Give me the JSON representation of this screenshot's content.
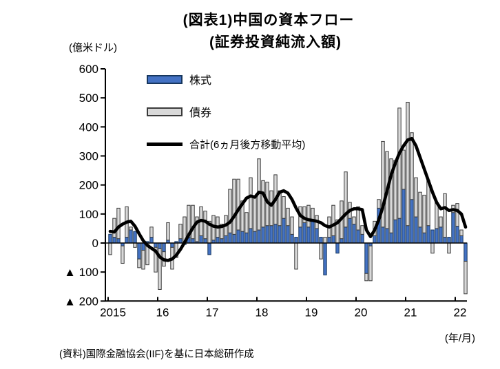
{
  "title": {
    "line1": "(図表1)中国の資本フロー",
    "line2": "(証券投資純流入額)"
  },
  "y_axis": {
    "unit_label": "(億米ドル)",
    "ticks": [
      {
        "value": 600,
        "label": "600"
      },
      {
        "value": 500,
        "label": "500"
      },
      {
        "value": 400,
        "label": "400"
      },
      {
        "value": 300,
        "label": "300"
      },
      {
        "value": 200,
        "label": "200"
      },
      {
        "value": 100,
        "label": "100"
      },
      {
        "value": 0,
        "label": "0"
      },
      {
        "value": -100,
        "label": "▲ 100"
      },
      {
        "value": -200,
        "label": "▲ 200"
      }
    ]
  },
  "x_axis": {
    "year_labels": [
      "2015",
      "16",
      "17",
      "18",
      "19",
      "20",
      "21",
      "22"
    ],
    "note": "(年/月)"
  },
  "legend": [
    {
      "label": "株式",
      "type": "bar",
      "fill": "#4472c4",
      "stroke": "#17375e"
    },
    {
      "label": "債券",
      "type": "bar",
      "fill": "#d9d9d9",
      "stroke": "#3a3a3a"
    },
    {
      "label": "合計(6ヵ月後方移動平均)",
      "type": "line",
      "color": "#000000"
    }
  ],
  "source": "(資料)国際金融協会(IIF)を基に日本総研作成",
  "colors": {
    "equity_fill": "#4472c4",
    "equity_stroke": "#17375e",
    "bond_fill": "#d9d9d9",
    "bond_stroke": "#3a3a3a",
    "line": "#000000",
    "axis": "#000000"
  },
  "chart_data": {
    "type": "bar",
    "subtype": "stacked-bars-with-line",
    "x_start": "2015-01",
    "x_end": "2022-03",
    "months_count": 87,
    "ylim": [
      -200,
      600
    ],
    "y_tick_step": 100,
    "grid": false,
    "legend_position": "inside-top-left",
    "series": [
      {
        "name": "株式",
        "type": "bar",
        "values": [
          30,
          20,
          15,
          -10,
          20,
          45,
          40,
          -55,
          -25,
          5,
          20,
          -15,
          -20,
          -30,
          10,
          -15,
          5,
          15,
          -5,
          20,
          15,
          5,
          25,
          15,
          -40,
          10,
          20,
          15,
          25,
          35,
          30,
          45,
          40,
          35,
          50,
          40,
          45,
          55,
          60,
          60,
          65,
          60,
          85,
          60,
          30,
          20,
          55,
          70,
          55,
          80,
          50,
          20,
          -110,
          20,
          25,
          -35,
          15,
          55,
          85,
          65,
          45,
          30,
          -105,
          -10,
          25,
          120,
          55,
          50,
          35,
          80,
          85,
          185,
          60,
          150,
          90,
          55,
          35,
          60,
          45,
          50,
          55,
          20,
          20,
          105,
          58,
          25,
          -63
        ]
      },
      {
        "name": "債券",
        "type": "bar",
        "values": [
          -40,
          65,
          105,
          -60,
          105,
          10,
          -15,
          -30,
          -65,
          -75,
          35,
          -85,
          -140,
          -50,
          60,
          -75,
          -50,
          50,
          90,
          110,
          115,
          85,
          100,
          95,
          75,
          85,
          70,
          50,
          70,
          150,
          190,
          175,
          105,
          70,
          175,
          120,
          245,
          160,
          150,
          120,
          170,
          120,
          75,
          60,
          60,
          -90,
          70,
          55,
          75,
          40,
          45,
          -55,
          20,
          70,
          105,
          80,
          130,
          190,
          55,
          25,
          80,
          30,
          -25,
          -120,
          50,
          30,
          295,
          265,
          255,
          205,
          380,
          135,
          425,
          230,
          135,
          120,
          130,
          155,
          -35,
          90,
          35,
          150,
          -35,
          25,
          78,
          20,
          -112
        ]
      },
      {
        "name": "合計(6ヵ月後方移動平均)",
        "type": "line",
        "values": [
          40,
          38,
          55,
          65,
          72,
          75,
          58,
          32,
          8,
          -8,
          -18,
          -28,
          -48,
          -58,
          -60,
          -55,
          -42,
          -22,
          2,
          28,
          52,
          72,
          78,
          75,
          65,
          58,
          55,
          57,
          62,
          72,
          92,
          115,
          135,
          155,
          162,
          158,
          175,
          172,
          142,
          130,
          150,
          175,
          180,
          172,
          150,
          120,
          95,
          85,
          80,
          78,
          75,
          70,
          60,
          55,
          62,
          70,
          85,
          100,
          112,
          118,
          118,
          115,
          45,
          22,
          45,
          80,
          125,
          180,
          235,
          275,
          310,
          335,
          355,
          360,
          335,
          295,
          255,
          215,
          175,
          140,
          118,
          122,
          112,
          115,
          112,
          100,
          55
        ]
      }
    ]
  }
}
